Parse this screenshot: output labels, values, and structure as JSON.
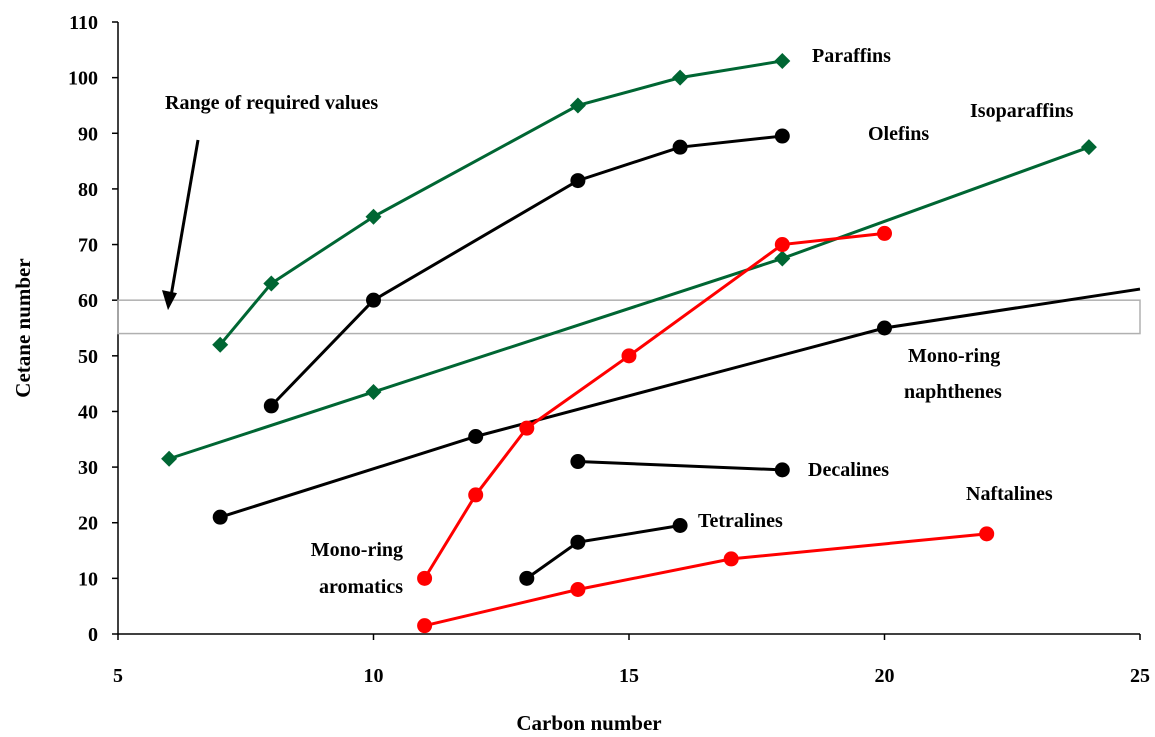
{
  "chart_data": {
    "type": "line",
    "xlabel": "Carbon number",
    "ylabel": "Cetane number",
    "xlim": [
      5,
      25
    ],
    "ylim": [
      0,
      110
    ],
    "xticks": [
      5,
      10,
      15,
      20,
      25
    ],
    "yticks": [
      0,
      10,
      20,
      30,
      40,
      50,
      60,
      70,
      80,
      90,
      100,
      110
    ],
    "grid": false,
    "band": {
      "label": "Range of required values",
      "y_range": [
        54,
        60
      ]
    },
    "series": [
      {
        "name": "Paraffins",
        "color": "#006633",
        "marker": "diamond",
        "points": [
          [
            7,
            52
          ],
          [
            8,
            63
          ],
          [
            10,
            75
          ],
          [
            14,
            95
          ],
          [
            16,
            100
          ],
          [
            18,
            103
          ]
        ]
      },
      {
        "name": "Olefins",
        "color": "#000000",
        "marker": "circle",
        "points": [
          [
            8,
            41
          ],
          [
            10,
            60
          ],
          [
            14,
            81.5
          ],
          [
            16,
            87.5
          ],
          [
            18,
            89.5
          ]
        ]
      },
      {
        "name": "Isoparaffins",
        "color": "#006633",
        "marker": "diamond",
        "points": [
          [
            6,
            31.5
          ],
          [
            10,
            43.5
          ],
          [
            18,
            67.5
          ],
          [
            24,
            87.5
          ]
        ]
      },
      {
        "name": "Mono-ring naphthenes",
        "color": "#000000",
        "marker": "circle",
        "points": [
          [
            7,
            21
          ],
          [
            12,
            35.5
          ],
          [
            20,
            55
          ],
          [
            25,
            62
          ]
        ],
        "markers_on": [
          0,
          1,
          2
        ]
      },
      {
        "name": "Mono-ring aromatics",
        "color": "#ff0000",
        "marker": "circle",
        "points": [
          [
            11,
            10
          ],
          [
            12,
            25
          ],
          [
            13,
            37
          ],
          [
            15,
            50
          ],
          [
            18,
            70
          ],
          [
            20,
            72
          ]
        ]
      },
      {
        "name": "Decalines",
        "color": "#000000",
        "marker": "circle",
        "points": [
          [
            14,
            31
          ],
          [
            18,
            29.5
          ]
        ]
      },
      {
        "name": "Tetralines",
        "color": "#000000",
        "marker": "circle",
        "points": [
          [
            13,
            10
          ],
          [
            14,
            16.5
          ],
          [
            16,
            19.5
          ]
        ]
      },
      {
        "name": "Naftalines",
        "color": "#ff0000",
        "marker": "circle",
        "points": [
          [
            11,
            1.5
          ],
          [
            14,
            8
          ],
          [
            17,
            13.5
          ],
          [
            22,
            18
          ]
        ]
      }
    ],
    "annotations": [
      {
        "text": "Paraffins"
      },
      {
        "text": "Olefins"
      },
      {
        "text": "Isoparaffins"
      },
      {
        "text": "Mono-ring"
      },
      {
        "text": "naphthenes"
      },
      {
        "text": "Decalines"
      },
      {
        "text": "Naftalines"
      },
      {
        "text": "Tetralines"
      },
      {
        "text": "Mono-ring"
      },
      {
        "text": "aromatics"
      },
      {
        "text": "Range of required values"
      }
    ]
  }
}
